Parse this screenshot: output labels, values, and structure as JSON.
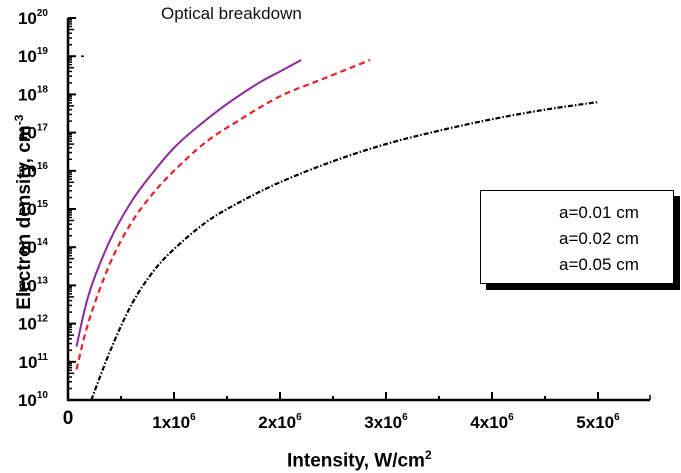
{
  "chart_data": {
    "type": "line",
    "title": "Optical breakdown",
    "xlabel": "Intensity, W/cm²",
    "ylabel": "Electron density, cm⁻³",
    "xlim": [
      0,
      5500000.0
    ],
    "ylim": [
      10000000000.0,
      1e+20
    ],
    "yscale": "log",
    "grid": false,
    "legend_position": "right-center",
    "x_ticks": [
      {
        "value": 0,
        "label": "0"
      },
      {
        "value": 1000000.0,
        "label": "1x10⁶"
      },
      {
        "value": 2000000.0,
        "label": "2x10⁶"
      },
      {
        "value": 3000000.0,
        "label": "3x10⁶"
      },
      {
        "value": 4000000.0,
        "label": "4x10⁶"
      },
      {
        "value": 5000000.0,
        "label": "5x10⁶"
      }
    ],
    "y_ticks": [
      {
        "exp": 10,
        "label": "10¹⁰"
      },
      {
        "exp": 11,
        "label": "10¹¹"
      },
      {
        "exp": 12,
        "label": "10¹²"
      },
      {
        "exp": 13,
        "label": "10¹³"
      },
      {
        "exp": 14,
        "label": "10¹⁴"
      },
      {
        "exp": 15,
        "label": "10¹⁵"
      },
      {
        "exp": 16,
        "label": "10¹⁶"
      },
      {
        "exp": 17,
        "label": "10¹⁷"
      },
      {
        "exp": 18,
        "label": "10¹⁸"
      },
      {
        "exp": 19,
        "label": "10¹⁹"
      },
      {
        "exp": 20,
        "label": "10²⁰"
      }
    ],
    "series": [
      {
        "name": "a=0.01 cm",
        "color": "#000000",
        "style": "dash-dot",
        "x": [
          220000.0,
          400000.0,
          600000.0,
          800000.0,
          1000000.0,
          1300000.0,
          1600000.0,
          2000000.0,
          2500000.0,
          3000000.0,
          3500000.0,
          4000000.0,
          4500000.0,
          5000000.0
        ],
        "log10_y": [
          10.0,
          11.3,
          12.5,
          13.35,
          13.95,
          14.65,
          15.15,
          15.7,
          16.25,
          16.7,
          17.05,
          17.35,
          17.6,
          17.8
        ]
      },
      {
        "name": "a=0.02 cm",
        "color": "#e8202a",
        "style": "dashed",
        "x": [
          80000.0,
          200000.0,
          400000.0,
          600000.0,
          800000.0,
          1000000.0,
          1300000.0,
          1600000.0,
          2000000.0,
          2400000.0,
          2850000.0
        ],
        "log10_y": [
          10.8,
          12.1,
          13.6,
          14.65,
          15.4,
          16.0,
          16.75,
          17.3,
          17.95,
          18.4,
          18.9
        ]
      },
      {
        "name": "a=0.05 cm",
        "color": "#8b2a9a",
        "style": "solid",
        "x": [
          80000.0,
          200000.0,
          400000.0,
          600000.0,
          800000.0,
          1000000.0,
          1200000.0,
          1500000.0,
          1800000.0,
          2000000.0,
          2200000.0
        ],
        "log10_y": [
          11.4,
          12.8,
          14.2,
          15.2,
          15.95,
          16.6,
          17.1,
          17.75,
          18.3,
          18.6,
          18.9
        ]
      }
    ],
    "annotations": [
      {
        "text": "-",
        "near": "y axis at 10¹⁹ (small tick mark outside plot)"
      }
    ]
  },
  "labels": {
    "title": "Optical breakdown",
    "xlabel_text": "Intensity, W/cm",
    "xlabel_sup": "2",
    "ylabel_text": "Electron density, cm",
    "ylabel_sup": "-3"
  },
  "legend": {
    "items": [
      {
        "label": "a=0.01 cm",
        "color": "#000000",
        "dash": "6,2,1,2"
      },
      {
        "label": "a=0.02 cm",
        "color": "#e8202a",
        "dash": "4,3"
      },
      {
        "label": "a=0.05 cm",
        "color": "#8b2a9a",
        "dash": ""
      }
    ]
  }
}
